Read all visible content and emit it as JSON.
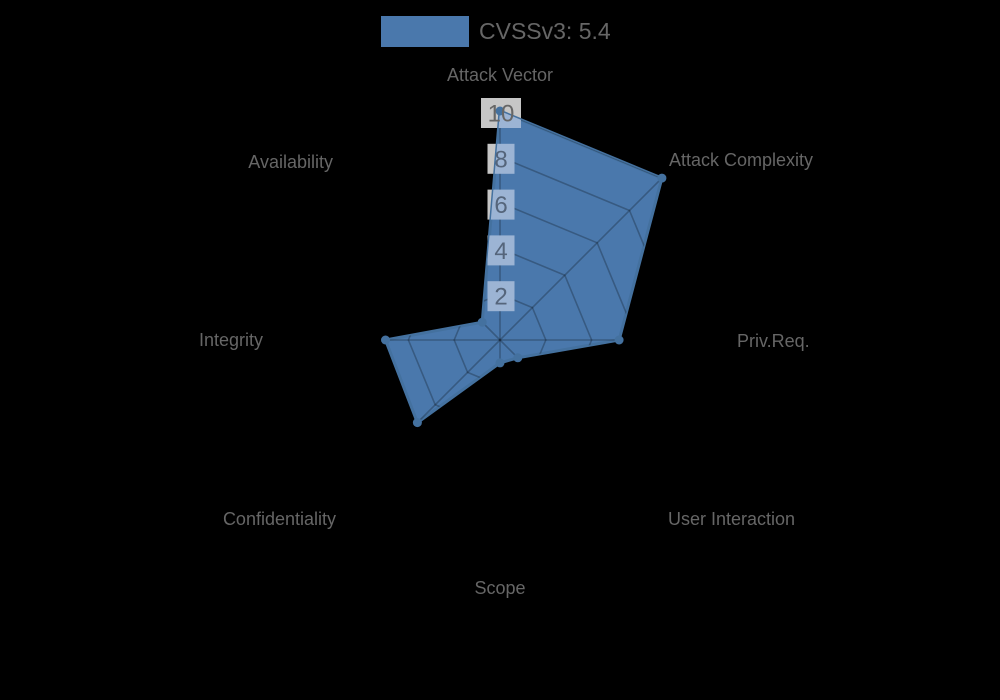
{
  "chart_data": {
    "type": "radar",
    "title": "",
    "legend_label": "CVSSv3: 5.4",
    "legend_position": "top",
    "axes": [
      "Attack Vector",
      "Attack Complexity",
      "Priv.Req.",
      "User Interaction",
      "Scope",
      "Confidentiality",
      "Integrity",
      "Availability"
    ],
    "series": [
      {
        "name": "CVSSv3: 5.4",
        "values": [
          10,
          10,
          5.2,
          1.1,
          1.0,
          5.1,
          5.0,
          1.1
        ]
      }
    ],
    "ticks": [
      2,
      4,
      6,
      8,
      10
    ],
    "rlim": [
      0,
      10
    ],
    "grid": true,
    "colors": {
      "fill": "#4a78ac",
      "stroke": "#44719f",
      "dot": "#44719f",
      "grid": "rgba(0,0,0,0.25)",
      "axis_label": "#666666",
      "legend_text": "#666666",
      "tick_text": "#55657b",
      "tick_text_outer": "#666666",
      "tick_backdrop_outer": "#c6c6c6",
      "tick_backdrop_inner": "#9cb4d4",
      "background": "#000000"
    }
  }
}
